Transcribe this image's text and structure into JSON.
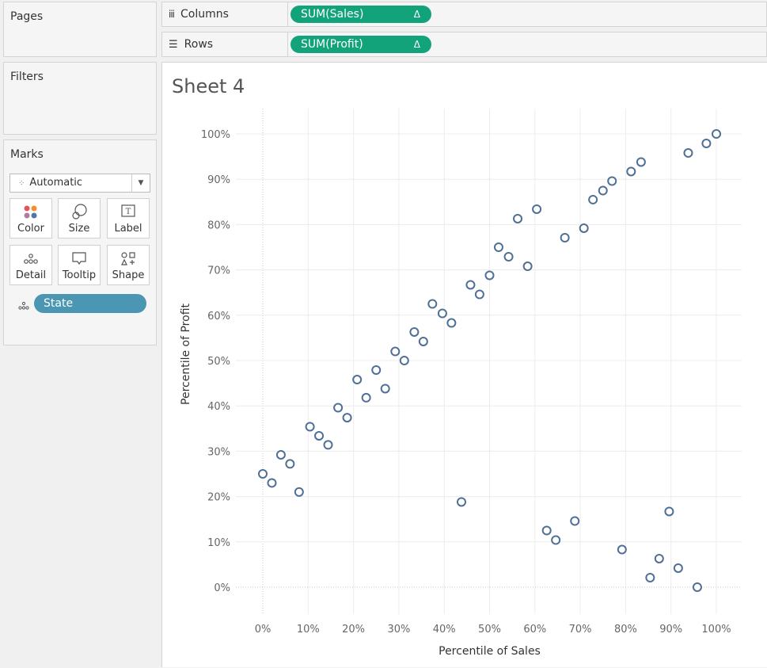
{
  "pages": {
    "title": "Pages"
  },
  "filters": {
    "title": "Filters"
  },
  "shelves": {
    "columns": {
      "label": "Columns",
      "pill": "SUM(Sales)",
      "delta": "Δ"
    },
    "rows": {
      "label": "Rows",
      "pill": "SUM(Profit)",
      "delta": "Δ"
    }
  },
  "marks": {
    "title": "Marks",
    "mark_type": "Automatic",
    "cards": {
      "color": "Color",
      "size": "Size",
      "label": "Label",
      "detail": "Detail",
      "tooltip": "Tooltip",
      "shape": "Shape"
    },
    "detail_field": "State"
  },
  "sheet": {
    "title": "Sheet 4"
  },
  "colors": {
    "pill_green": "#12a37a",
    "pill_blue": "#4b96b3",
    "point_stroke": "#4f6f95"
  },
  "chart_data": {
    "type": "scatter",
    "xlabel": "Percentile of Sales",
    "ylabel": "Percentile of Profit",
    "xlim": [
      0,
      100
    ],
    "ylim": [
      0,
      100
    ],
    "x_ticks": [
      "0%",
      "10%",
      "20%",
      "30%",
      "40%",
      "50%",
      "60%",
      "70%",
      "80%",
      "90%",
      "100%"
    ],
    "y_ticks": [
      "0%",
      "10%",
      "20%",
      "30%",
      "40%",
      "50%",
      "60%",
      "70%",
      "80%",
      "90%",
      "100%"
    ],
    "grid": true,
    "points": [
      {
        "x": 0,
        "y": 25
      },
      {
        "x": 2,
        "y": 23
      },
      {
        "x": 4,
        "y": 29.2
      },
      {
        "x": 6,
        "y": 27.2
      },
      {
        "x": 8,
        "y": 21
      },
      {
        "x": 10.4,
        "y": 35.4
      },
      {
        "x": 12.4,
        "y": 33.4
      },
      {
        "x": 14.4,
        "y": 31.4
      },
      {
        "x": 16.6,
        "y": 39.6
      },
      {
        "x": 18.6,
        "y": 37.4
      },
      {
        "x": 20.8,
        "y": 45.8
      },
      {
        "x": 22.8,
        "y": 41.8
      },
      {
        "x": 25,
        "y": 47.9
      },
      {
        "x": 27,
        "y": 43.8
      },
      {
        "x": 29.2,
        "y": 52
      },
      {
        "x": 31.2,
        "y": 50
      },
      {
        "x": 33.4,
        "y": 56.3
      },
      {
        "x": 35.4,
        "y": 54.2
      },
      {
        "x": 37.4,
        "y": 62.5
      },
      {
        "x": 39.6,
        "y": 60.4
      },
      {
        "x": 41.6,
        "y": 58.3
      },
      {
        "x": 43.8,
        "y": 18.8
      },
      {
        "x": 45.8,
        "y": 66.7
      },
      {
        "x": 47.8,
        "y": 64.6
      },
      {
        "x": 50,
        "y": 68.8
      },
      {
        "x": 52,
        "y": 75
      },
      {
        "x": 54.2,
        "y": 72.9
      },
      {
        "x": 56.2,
        "y": 81.3
      },
      {
        "x": 58.4,
        "y": 70.8
      },
      {
        "x": 60.4,
        "y": 83.4
      },
      {
        "x": 62.6,
        "y": 12.5
      },
      {
        "x": 64.6,
        "y": 10.4
      },
      {
        "x": 66.6,
        "y": 77.1
      },
      {
        "x": 68.8,
        "y": 14.6
      },
      {
        "x": 70.8,
        "y": 79.2
      },
      {
        "x": 72.8,
        "y": 85.5
      },
      {
        "x": 75,
        "y": 87.5
      },
      {
        "x": 77,
        "y": 89.6
      },
      {
        "x": 79.2,
        "y": 8.3
      },
      {
        "x": 81.2,
        "y": 91.7
      },
      {
        "x": 83.4,
        "y": 93.8
      },
      {
        "x": 85.4,
        "y": 2.1
      },
      {
        "x": 87.4,
        "y": 6.3
      },
      {
        "x": 89.6,
        "y": 16.7
      },
      {
        "x": 91.6,
        "y": 4.2
      },
      {
        "x": 93.8,
        "y": 95.8
      },
      {
        "x": 95.8,
        "y": 0
      },
      {
        "x": 97.8,
        "y": 97.9
      },
      {
        "x": 100,
        "y": 100
      }
    ]
  }
}
